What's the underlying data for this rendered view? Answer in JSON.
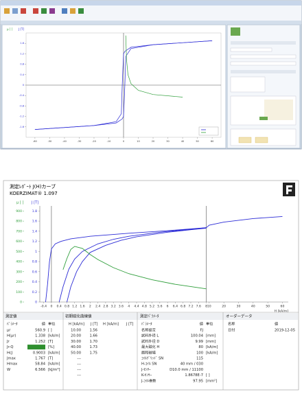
{
  "chart_data": [
    {
      "type": "line",
      "y_title": "J [T]",
      "y2_title": "μ [ ]",
      "y_color": "#2b2bd6",
      "y2_color": "#2e9e3a",
      "xlim": [
        -66,
        66
      ],
      "xticks": [
        -60,
        -50,
        -40,
        -30,
        -20,
        -10,
        0,
        10,
        20,
        30,
        40,
        50,
        60
      ],
      "ylim": [
        -2,
        2
      ],
      "yticks": [
        -1.6,
        -1.2,
        -0.8,
        -0.4,
        0,
        0.4,
        0.8,
        1.2,
        1.6
      ],
      "y2lim": [
        -1000,
        1000
      ],
      "series": [
        {
          "color": "#2b2bd6",
          "x": [
            60,
            20,
            5,
            1,
            0,
            -0.9,
            -1.5,
            -5,
            -20,
            -60
          ],
          "values": [
            1.7,
            1.55,
            1.45,
            1.3,
            1.2,
            0,
            -1.1,
            -1.4,
            -1.55,
            -1.7
          ]
        },
        {
          "color": "#2b2bd6",
          "x": [
            -60,
            -20,
            -5,
            -1,
            0,
            0.9,
            1.5,
            5,
            20,
            60
          ],
          "values": [
            -1.7,
            -1.55,
            -1.45,
            -1.3,
            -1.2,
            0,
            1.1,
            1.4,
            1.55,
            1.7
          ]
        },
        {
          "color": "#2e9e3a",
          "axis": "y2",
          "x": [
            1.5,
            2,
            3,
            5,
            10,
            20,
            40
          ],
          "values": [
            950,
            500,
            200,
            30,
            -100,
            -180,
            -230
          ]
        }
      ]
    },
    {
      "type": "line",
      "y_title": "J [T]",
      "y2_title": "μ [ ]",
      "y_color": "#2b2bd6",
      "y2_color": "#2e9e3a",
      "x_label": "H [kA/m]",
      "xlim": [
        -0.6,
        64
      ],
      "x_break": 8,
      "xticks": [
        -0.4,
        0,
        0.4,
        0.8,
        1.2,
        1.6,
        2,
        2.4,
        2.8,
        3.2,
        3.6,
        4,
        4.4,
        4.8,
        5.2,
        5.6,
        6,
        6.4,
        6.8,
        7.2,
        7.6,
        8,
        10,
        20,
        30,
        40,
        50,
        60
      ],
      "ylim": [
        0,
        1.9
      ],
      "yticks": [
        0,
        0.2,
        0.4,
        0.6,
        0.8,
        1,
        1.2,
        1.4,
        1.6,
        1.8
      ],
      "y2lim": [
        0,
        950
      ],
      "y2ticks": [
        0,
        100,
        200,
        300,
        400,
        500,
        600,
        700,
        800,
        900
      ],
      "series": [
        {
          "color": "#2b2bd6",
          "x": [
            -0.3,
            -0.2,
            -0.1,
            0,
            0.2,
            0.5,
            1,
            2,
            4,
            6,
            8,
            10,
            20,
            40,
            60
          ],
          "values": [
            0,
            0.35,
            0.8,
            1.05,
            1.15,
            1.2,
            1.25,
            1.3,
            1.36,
            1.41,
            1.47,
            1.52,
            1.58,
            1.65,
            1.69
          ]
        },
        {
          "color": "#2b2bd6",
          "x": [
            0.4,
            0.6,
            0.9,
            1.2,
            1.6,
            2.4,
            3.2,
            4,
            5.6,
            7.2,
            8
          ],
          "values": [
            0,
            0.3,
            0.65,
            0.85,
            1.0,
            1.15,
            1.24,
            1.3,
            1.38,
            1.44,
            1.47
          ]
        },
        {
          "color": "#2b2bd6",
          "x": [
            0.8,
            1,
            1.3,
            1.6,
            2,
            2.8,
            3.6,
            4.4,
            6,
            7.2,
            8
          ],
          "values": [
            0,
            0.3,
            0.6,
            0.8,
            0.98,
            1.12,
            1.22,
            1.29,
            1.38,
            1.43,
            1.46
          ]
        },
        {
          "color": "#2e9e3a",
          "axis": "y2",
          "x": [
            0.6,
            0.8,
            1,
            1.2,
            1.6,
            2,
            2.4,
            3.2,
            4,
            5.2,
            6.4,
            8
          ],
          "values": [
            320,
            430,
            520,
            550,
            530,
            470,
            420,
            340,
            280,
            220,
            175,
            130
          ]
        }
      ]
    }
  ],
  "report": {
    "title": "測定ﾚﾎﾟｰﾄ J(H)カーブ",
    "subtitle": "KOERZIMAT® 1.097",
    "measured": {
      "title": "測定値",
      "headers": [
        "ﾊﾟﾗﾒｰﾀ",
        "値",
        "単位"
      ],
      "rows": [
        {
          "name": "μr",
          "value": "560.9",
          "unit": "[ ]"
        },
        {
          "name": "H(μr)",
          "value": "1.338",
          "unit": "[kA/m]"
        },
        {
          "name": "Jr",
          "value": "1.252",
          "unit": "[T]"
        },
        {
          "name": "Jr-Q",
          "unit": "[%]"
        },
        {
          "name": "HcJ",
          "value": "0.9003",
          "unit": "[kA/m]"
        },
        {
          "name": "Jmax",
          "value": "1.767",
          "unit": "[T]"
        },
        {
          "name": "Hmax",
          "value": "58.84",
          "unit": "[kA/m]"
        },
        {
          "name": "W",
          "value": "6.566",
          "unit": "[kJ/m³]"
        }
      ]
    },
    "initial": {
      "title": "初期磁化曲線値",
      "headers": [
        "H [kA/m]",
        "J [T]",
        "H [kA/m]",
        "J [T]"
      ],
      "rows": [
        [
          "10.00",
          "1.56"
        ],
        [
          "20.00",
          "1.66"
        ],
        [
          "30.00",
          "1.70"
        ],
        [
          "40.00",
          "1.73"
        ],
        [
          "50.00",
          "1.75"
        ],
        [
          "---"
        ],
        [
          "---"
        ],
        [
          "---"
        ],
        [
          "---"
        ]
      ]
    },
    "params": {
      "title": "測定ﾊﾟﾗﾒｰﾀ",
      "headers": [
        "ﾊﾟﾗﾒｰﾀ",
        "値",
        "単位"
      ],
      "rows": [
        {
          "name": "名称設定",
          "value": "FJ"
        },
        {
          "name": "試料外径 L",
          "value": "100.04",
          "unit": "[mm]"
        },
        {
          "name": "試料外径 D",
          "value": "9.99",
          "unit": "[mm]"
        },
        {
          "name": "最大磁化 H",
          "value": "80",
          "unit": "[kA/m]"
        },
        {
          "name": "飽和磁場",
          "value": "100",
          "unit": "[kA/m]"
        },
        {
          "name": "ｺｲﾙｸﾞﾘｯﾄﾞ SN",
          "value": "115"
        },
        {
          "name": "H-ｺｲﾙ SN",
          "value": "40 mm / 030"
        },
        {
          "name": "J-ｾﾝｻｰ",
          "value": "D10.0 mm / 11100"
        },
        {
          "name": "K-ｾﾝｻｰ",
          "value": "1.8678E-7",
          "unit": "[ ]"
        },
        {
          "name": "J-ｺｲﾙ巻数",
          "value": "97.95",
          "unit": "[mm²]"
        }
      ]
    },
    "order": {
      "title": "オーダーデータ",
      "headers": [
        "名称",
        "値"
      ],
      "rows": [
        [
          "日付",
          "2019-12-05"
        ]
      ]
    }
  }
}
